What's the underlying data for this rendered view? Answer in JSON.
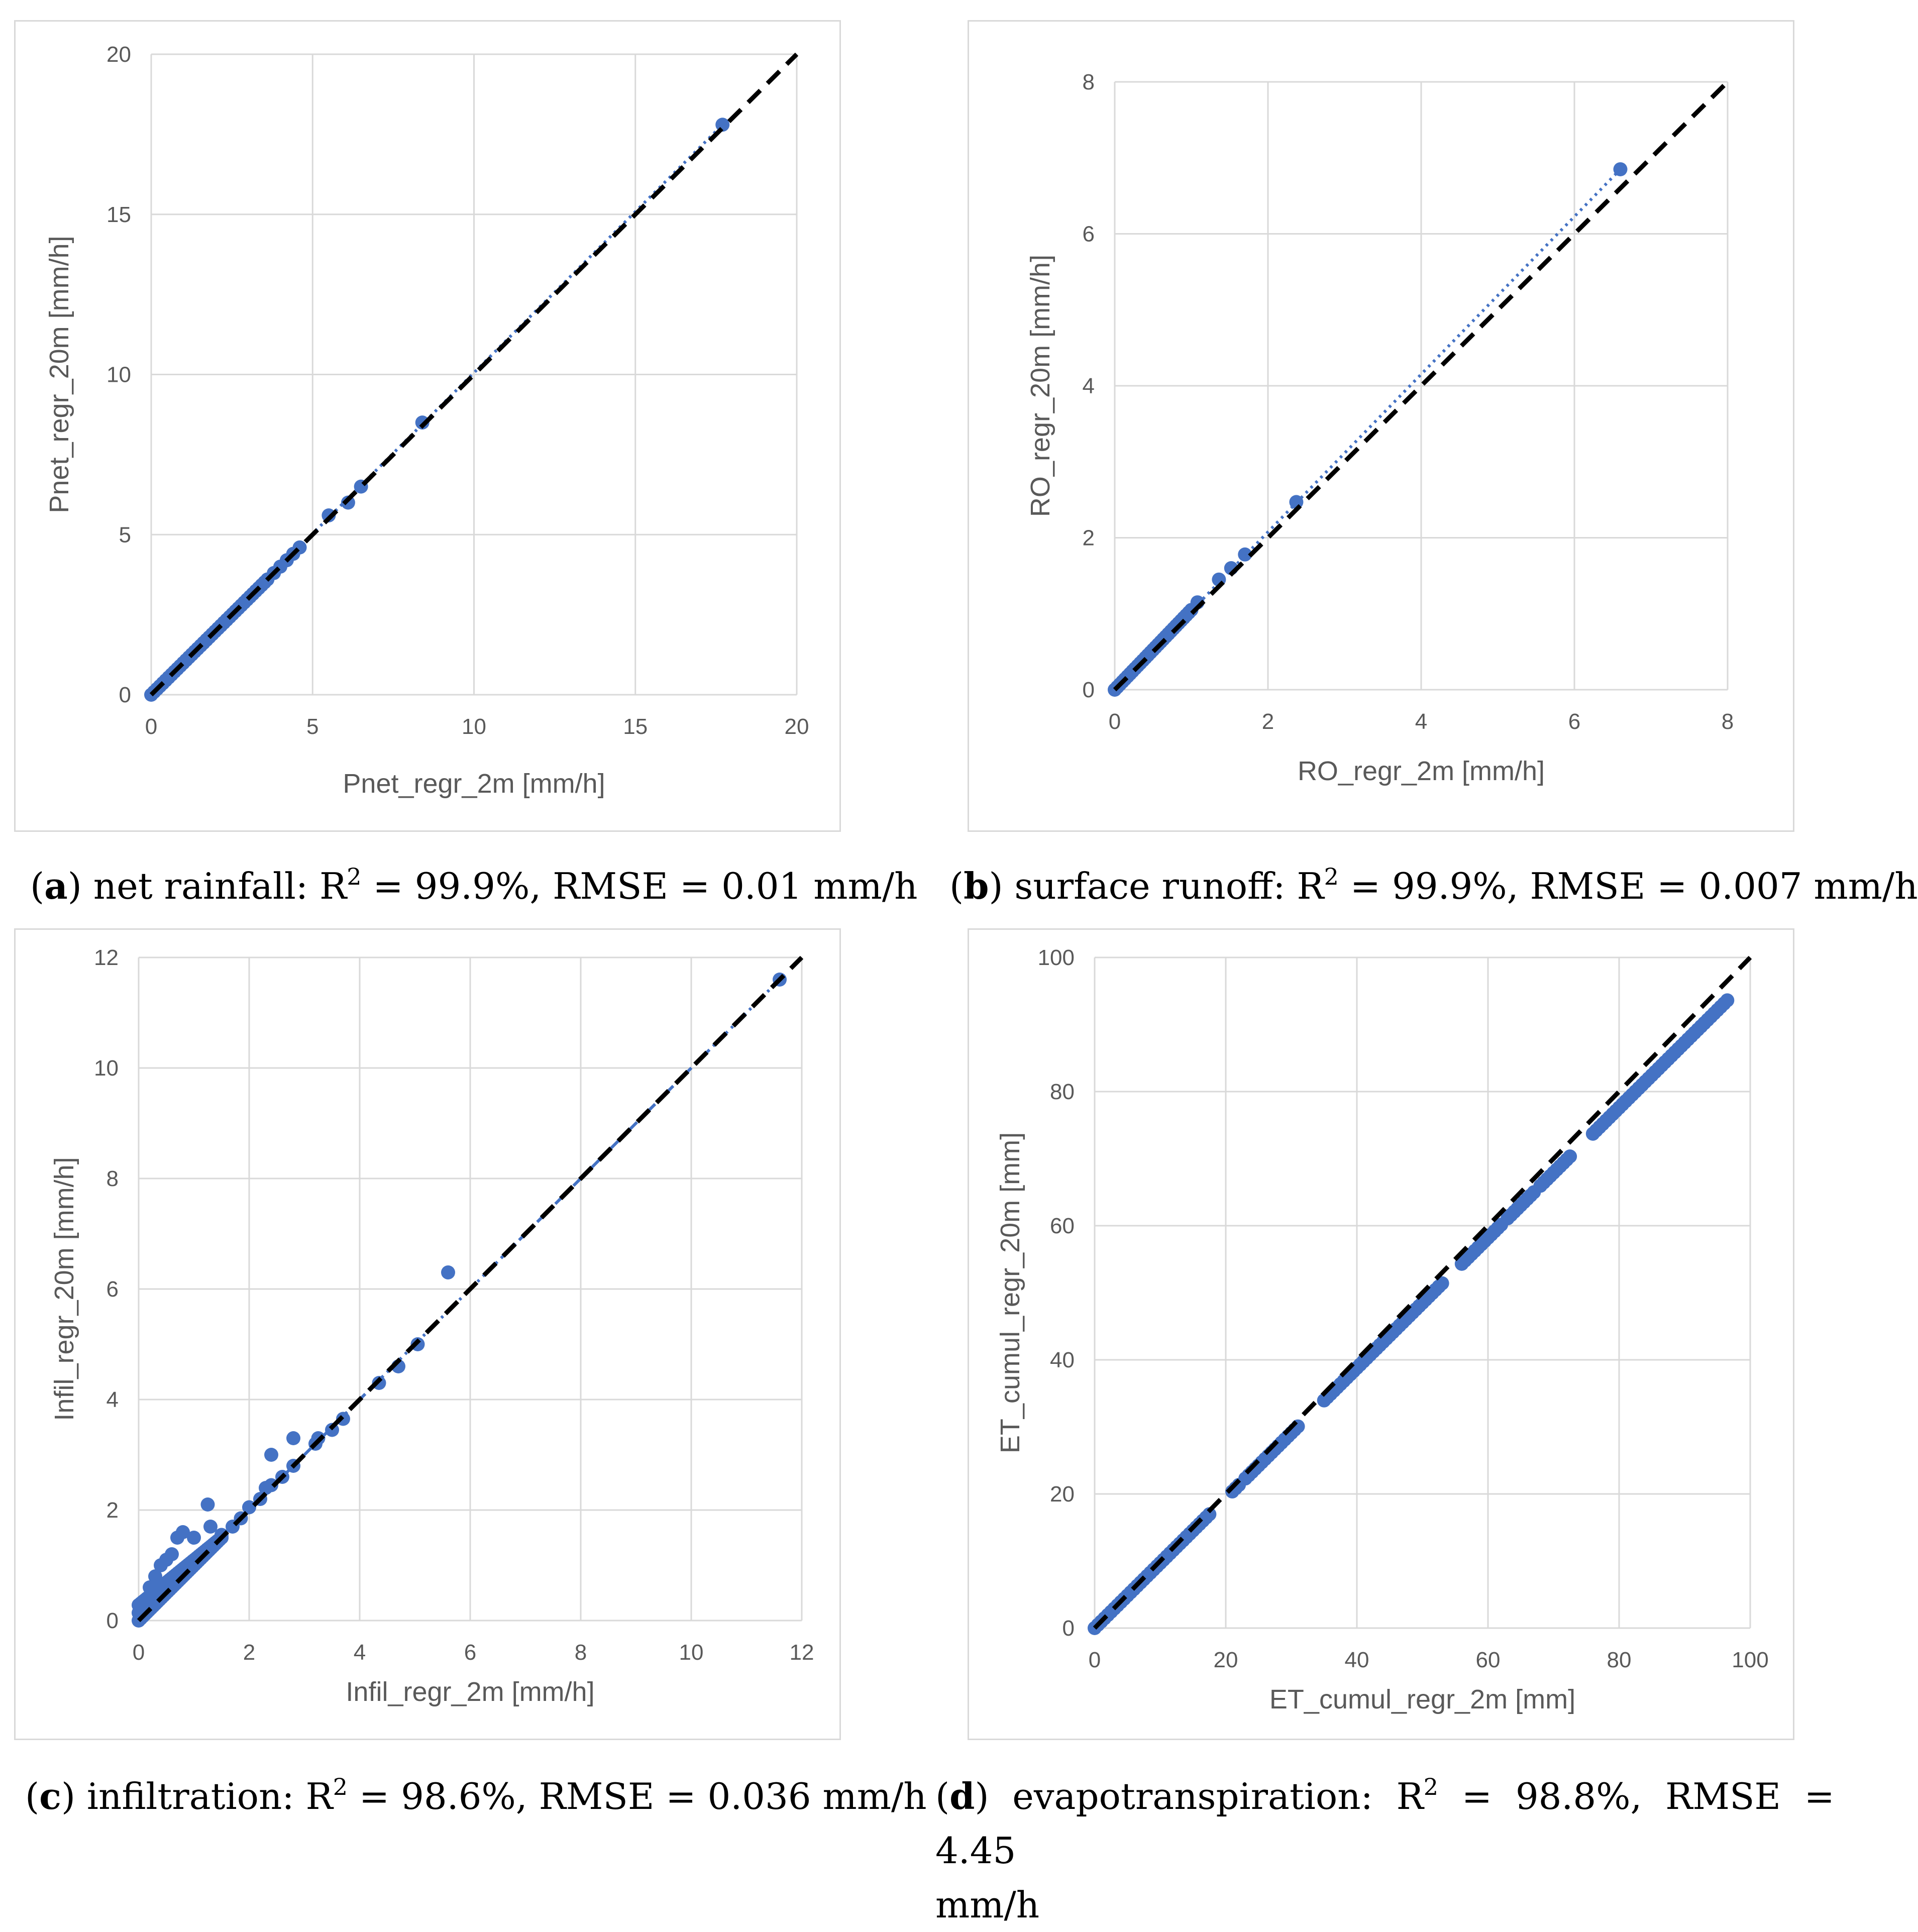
{
  "colors": {
    "points": "#4472c4",
    "reference_line": "#000000",
    "trend": "#4472c4",
    "grid": "#d9d9d9",
    "text": "#595959"
  },
  "captions": {
    "a": {
      "letter": "a",
      "text": " net rainfall: R",
      "sup": "2",
      "rest": " = 99.9%, RMSE = 0.01 mm/h"
    },
    "b": {
      "letter": "b",
      "text": " surface runoff: R",
      "sup": "2",
      "rest": " = 99.9%, RMSE = 0.007 mm/h"
    },
    "c": {
      "letter": "c",
      "text": " infiltration: R",
      "sup": "2",
      "rest": " = 98.6%, RMSE = 0.036 mm/h"
    },
    "d": {
      "letter": "d",
      "text": " evapotranspiration: R",
      "sup": "2",
      "rest": " = 98.8%, RMSE = 4.45",
      "rest2": "mm/h"
    }
  },
  "chart_data": [
    {
      "id": "a",
      "type": "scatter",
      "xlabel": "Pnet_regr_2m [mm/h]",
      "ylabel": "Pnet_regr_20m [mm/h]",
      "xlim": [
        0,
        20
      ],
      "ylim": [
        0,
        20
      ],
      "xticks": [
        0,
        5,
        10,
        15,
        20
      ],
      "yticks": [
        0,
        5,
        10,
        15,
        20
      ],
      "reference_line": "1:1 dashed",
      "trendline": {
        "style": "dotted",
        "from": [
          0,
          0
        ],
        "to": [
          17.7,
          17.8
        ]
      },
      "points": [
        [
          17.7,
          17.8
        ],
        [
          8.4,
          8.5
        ],
        [
          6.5,
          6.5
        ],
        [
          6.1,
          6.0
        ],
        [
          5.5,
          5.6
        ],
        [
          4.6,
          4.6
        ],
        [
          4.4,
          4.4
        ],
        [
          4.2,
          4.2
        ],
        [
          4.0,
          4.0
        ],
        [
          3.8,
          3.8
        ]
      ],
      "cluster": {
        "from": [
          0,
          0
        ],
        "to": [
          3.6,
          3.6
        ],
        "count": 40,
        "spread": 0
      }
    },
    {
      "id": "b",
      "type": "scatter",
      "xlabel": "RO_regr_2m [mm/h]",
      "ylabel": "RO_regr_20m [mm/h]",
      "xlim": [
        0,
        8
      ],
      "ylim": [
        0,
        8
      ],
      "xticks": [
        0,
        2,
        4,
        6,
        8
      ],
      "yticks": [
        0,
        2,
        4,
        6,
        8
      ],
      "reference_line": "1:1 dashed",
      "trendline": {
        "style": "dotted",
        "from": [
          0,
          0
        ],
        "to": [
          6.6,
          6.85
        ]
      },
      "points": [
        [
          6.6,
          6.85
        ],
        [
          2.37,
          2.47
        ],
        [
          1.7,
          1.78
        ],
        [
          1.52,
          1.6
        ],
        [
          1.36,
          1.45
        ],
        [
          1.08,
          1.15
        ]
      ],
      "cluster": {
        "from": [
          0,
          0
        ],
        "to": [
          1.0,
          1.05
        ],
        "count": 30,
        "spread": 0
      }
    },
    {
      "id": "c",
      "type": "scatter",
      "xlabel": "Infil_regr_2m [mm/h]",
      "ylabel": "Infil_regr_20m [mm/h]",
      "xlim": [
        0,
        12
      ],
      "ylim": [
        0,
        12
      ],
      "xticks": [
        0,
        2,
        4,
        6,
        8,
        10,
        12
      ],
      "yticks": [
        0,
        2,
        4,
        6,
        8,
        10,
        12
      ],
      "reference_line": "1:1 dashed",
      "trendline": {
        "style": "dash-dot",
        "from": [
          0,
          0
        ],
        "to": [
          11.6,
          11.6
        ]
      },
      "points": [
        [
          11.6,
          11.6
        ],
        [
          5.6,
          6.3
        ],
        [
          5.05,
          5.0
        ],
        [
          4.7,
          4.6
        ],
        [
          4.35,
          4.3
        ],
        [
          3.7,
          3.65
        ],
        [
          3.5,
          3.45
        ],
        [
          3.25,
          3.3
        ],
        [
          3.2,
          3.2
        ],
        [
          2.8,
          3.3
        ],
        [
          2.4,
          3.0
        ],
        [
          2.8,
          2.8
        ],
        [
          2.6,
          2.6
        ],
        [
          2.4,
          2.45
        ],
        [
          2.3,
          2.4
        ],
        [
          2.2,
          2.2
        ],
        [
          2.0,
          2.05
        ],
        [
          1.25,
          2.1
        ],
        [
          1.3,
          1.7
        ],
        [
          0.8,
          1.6
        ],
        [
          1.0,
          1.5
        ],
        [
          0.7,
          1.5
        ],
        [
          0.5,
          1.1
        ],
        [
          0.6,
          1.2
        ],
        [
          0.4,
          1.0
        ],
        [
          0.3,
          0.8
        ],
        [
          0.2,
          0.6
        ],
        [
          0.15,
          0.4
        ],
        [
          1.5,
          1.55
        ],
        [
          1.7,
          1.7
        ],
        [
          1.85,
          1.85
        ]
      ],
      "cluster": {
        "from": [
          0,
          0
        ],
        "to": [
          1.5,
          1.5
        ],
        "count": 40,
        "spread": 0.35
      }
    },
    {
      "id": "d",
      "type": "scatter",
      "xlabel": "ET_cumul_regr_2m [mm]",
      "ylabel": "ET_cumul_regr_20m [mm]",
      "xlim": [
        0,
        100
      ],
      "ylim": [
        0,
        100
      ],
      "xticks": [
        0,
        20,
        40,
        60,
        80,
        100
      ],
      "yticks": [
        0,
        20,
        40,
        60,
        80,
        100
      ],
      "reference_line": "1:1 dashed",
      "trendline": null,
      "segments": [
        [
          0,
          17.5
        ],
        [
          21,
          22
        ],
        [
          23,
          31
        ],
        [
          35,
          53
        ],
        [
          56,
          62
        ],
        [
          63,
          67
        ],
        [
          68,
          72.5
        ],
        [
          76,
          96.5
        ]
      ],
      "slope": 0.97,
      "points": []
    }
  ]
}
